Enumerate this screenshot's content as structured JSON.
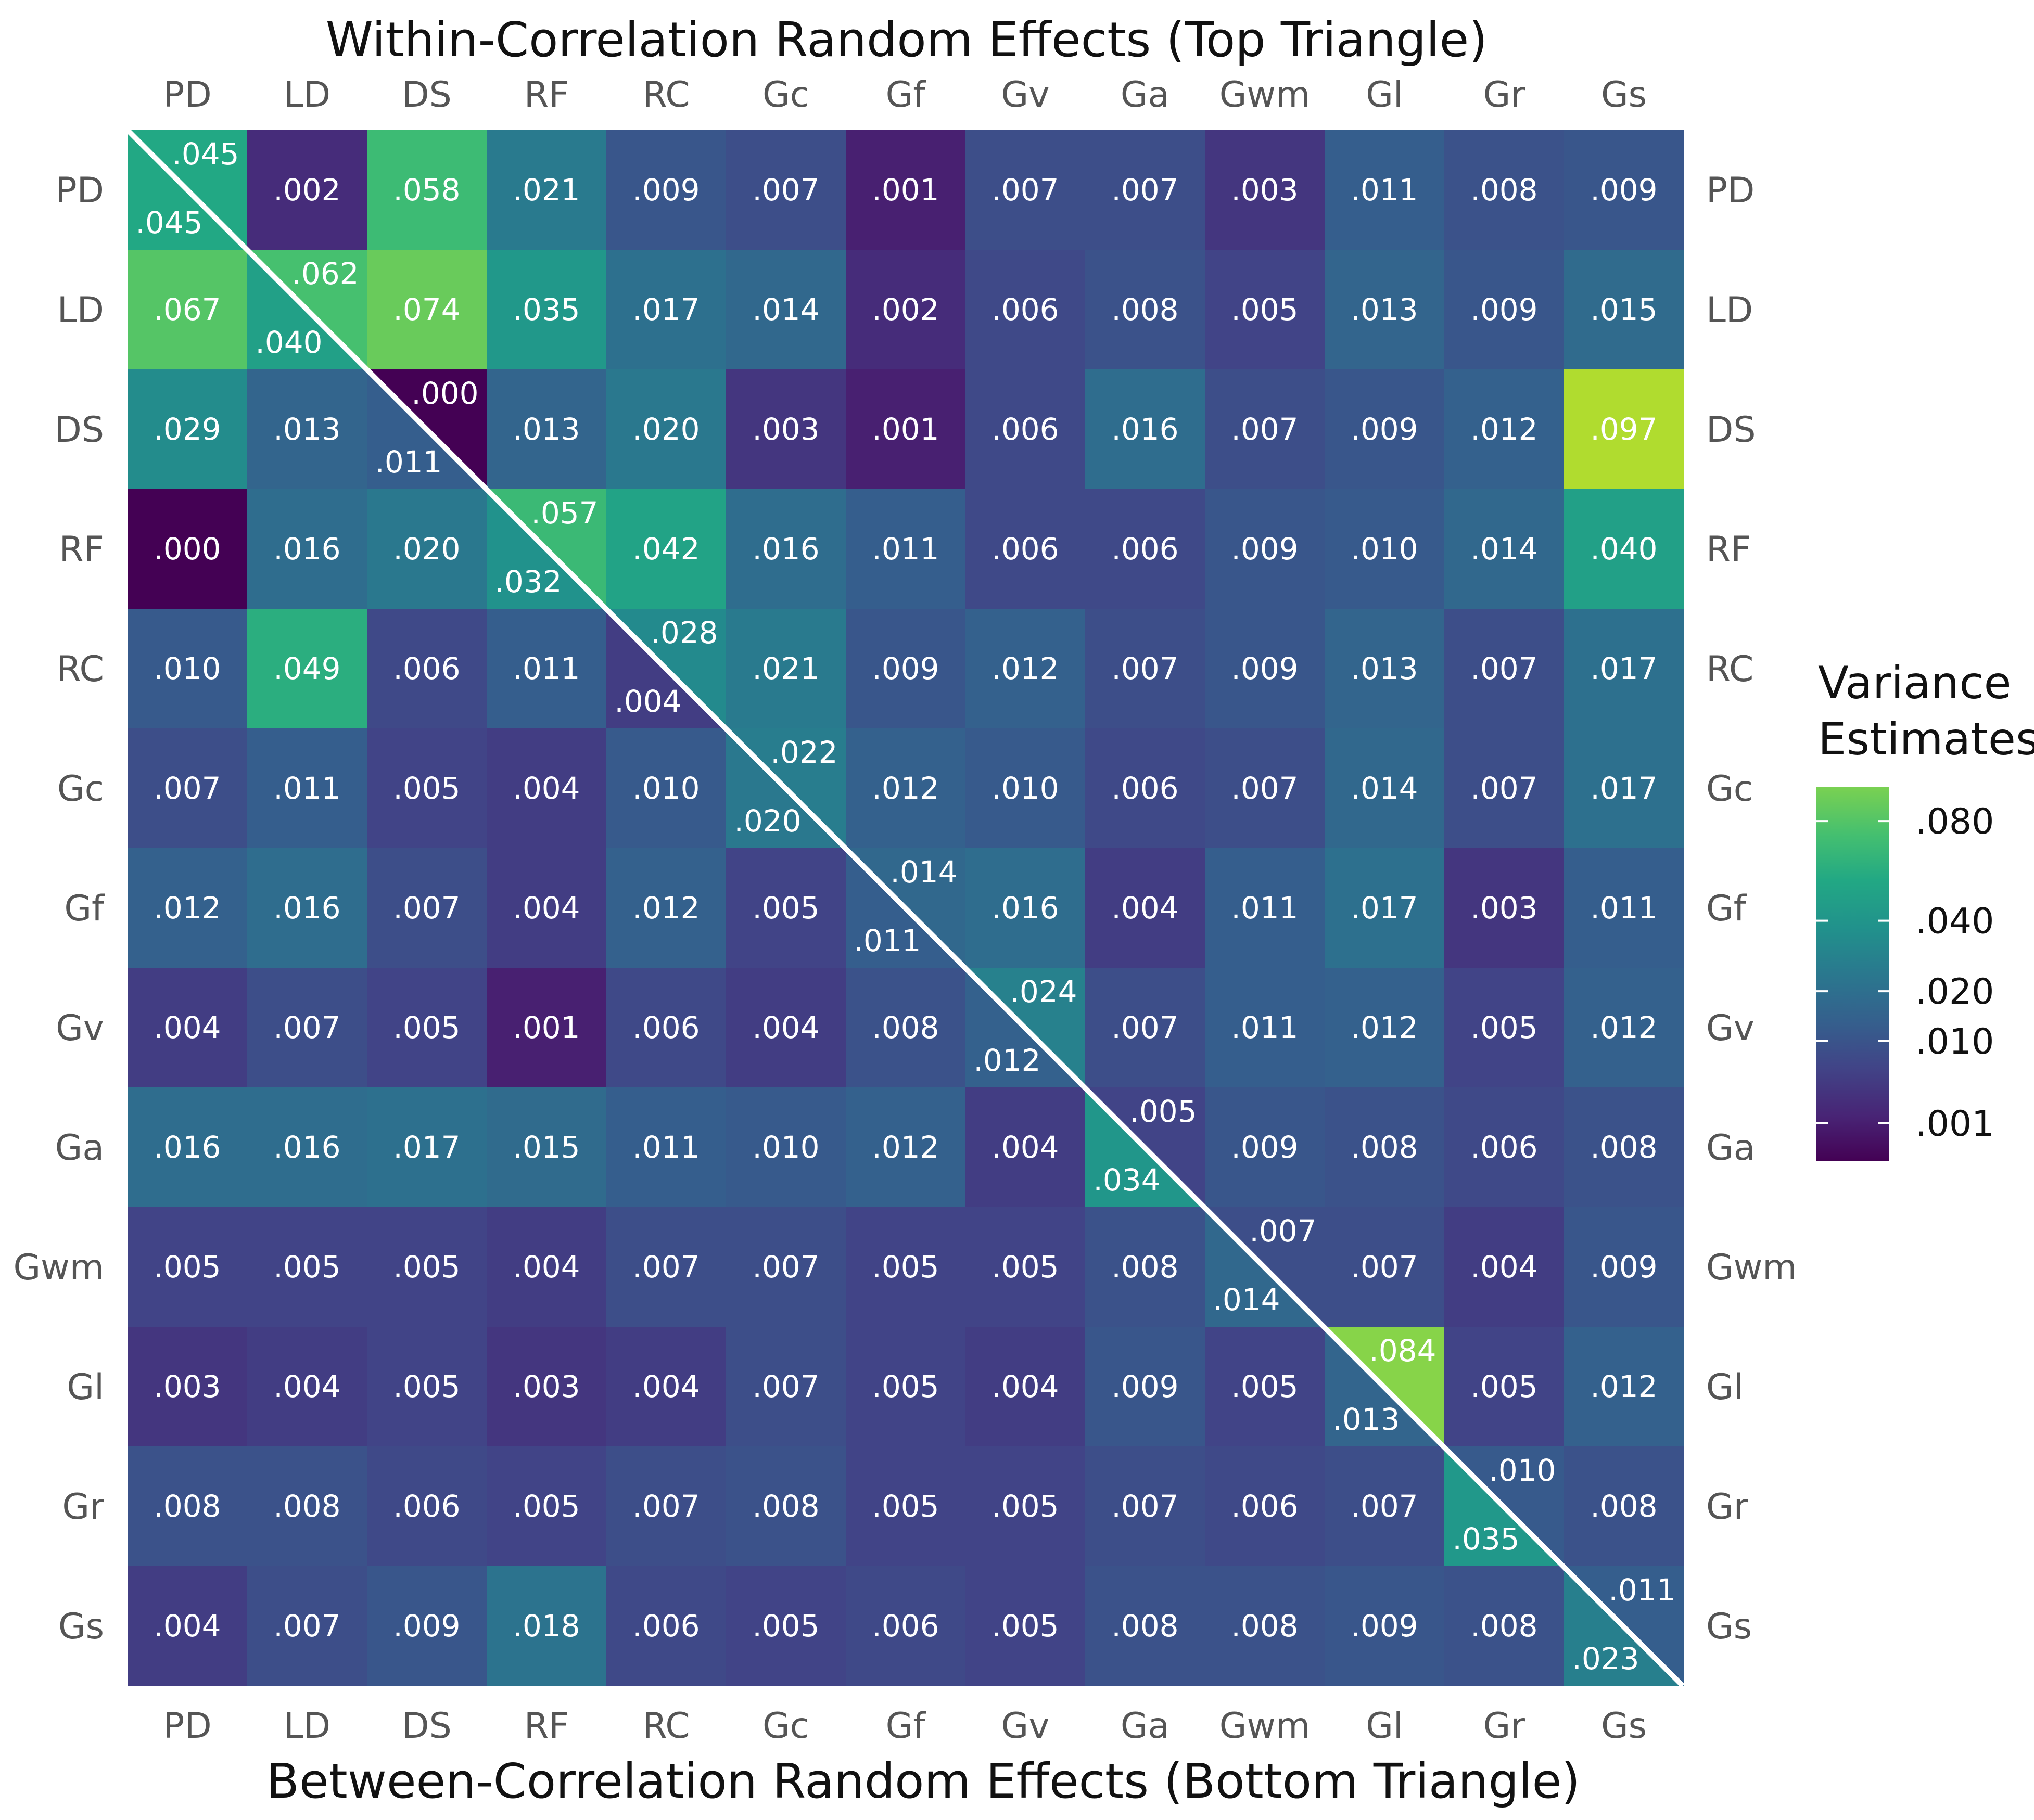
{
  "chart_data": {
    "type": "heatmap",
    "title_top": "Within-Correlation Random Effects (Top Triangle)",
    "title_bottom": "Between-Correlation Random Effects (Bottom Triangle)",
    "labels": [
      "PD",
      "LD",
      "DS",
      "RF",
      "RC",
      "Gc",
      "Gf",
      "Gv",
      "Ga",
      "Gwm",
      "Gl",
      "Gr",
      "Gs"
    ],
    "diagonal_within": [
      ".045",
      ".062",
      ".000",
      ".057",
      ".028",
      ".022",
      ".014",
      ".024",
      ".005",
      ".007",
      ".084",
      ".010",
      ".011"
    ],
    "diagonal_between": [
      ".045",
      ".040",
      ".011",
      ".032",
      ".004",
      ".020",
      ".011",
      ".012",
      ".034",
      ".014",
      ".013",
      ".035",
      ".023"
    ],
    "cells": [
      [
        null,
        ".002",
        ".058",
        ".021",
        ".009",
        ".007",
        ".001",
        ".007",
        ".007",
        ".003",
        ".011",
        ".008",
        ".009"
      ],
      [
        ".067",
        null,
        ".074",
        ".035",
        ".017",
        ".014",
        ".002",
        ".006",
        ".008",
        ".005",
        ".013",
        ".009",
        ".015"
      ],
      [
        ".029",
        ".013",
        null,
        ".013",
        ".020",
        ".003",
        ".001",
        ".006",
        ".016",
        ".007",
        ".009",
        ".012",
        ".097"
      ],
      [
        ".000",
        ".016",
        ".020",
        null,
        ".042",
        ".016",
        ".011",
        ".006",
        ".006",
        ".009",
        ".010",
        ".014",
        ".040"
      ],
      [
        ".010",
        ".049",
        ".006",
        ".011",
        null,
        ".021",
        ".009",
        ".012",
        ".007",
        ".009",
        ".013",
        ".007",
        ".017"
      ],
      [
        ".007",
        ".011",
        ".005",
        ".004",
        ".010",
        null,
        ".012",
        ".010",
        ".006",
        ".007",
        ".014",
        ".007",
        ".017"
      ],
      [
        ".012",
        ".016",
        ".007",
        ".004",
        ".012",
        ".005",
        null,
        ".016",
        ".004",
        ".011",
        ".017",
        ".003",
        ".011"
      ],
      [
        ".004",
        ".007",
        ".005",
        ".001",
        ".006",
        ".004",
        ".008",
        null,
        ".007",
        ".011",
        ".012",
        ".005",
        ".012"
      ],
      [
        ".016",
        ".016",
        ".017",
        ".015",
        ".011",
        ".010",
        ".012",
        ".004",
        null,
        ".009",
        ".008",
        ".006",
        ".008"
      ],
      [
        ".005",
        ".005",
        ".005",
        ".004",
        ".007",
        ".007",
        ".005",
        ".005",
        ".008",
        null,
        ".007",
        ".004",
        ".009"
      ],
      [
        ".003",
        ".004",
        ".005",
        ".003",
        ".004",
        ".007",
        ".005",
        ".004",
        ".009",
        ".005",
        null,
        ".005",
        ".012"
      ],
      [
        ".008",
        ".008",
        ".006",
        ".005",
        ".007",
        ".008",
        ".005",
        ".005",
        ".007",
        ".006",
        ".007",
        null,
        ".008"
      ],
      [
        ".004",
        ".007",
        ".009",
        ".018",
        ".006",
        ".005",
        ".006",
        ".005",
        ".008",
        ".008",
        ".009",
        ".008",
        null
      ]
    ],
    "legend": {
      "title_line1": "Variance",
      "title_line2": "Estimates",
      "ticks": [
        ".080",
        ".040",
        ".020",
        ".010",
        ".001"
      ],
      "tick_values": [
        0.08,
        0.04,
        0.02,
        0.01,
        0.001
      ],
      "scale": "sqrt",
      "domain": [
        0,
        0.097
      ],
      "colorscale": "viridis"
    }
  }
}
